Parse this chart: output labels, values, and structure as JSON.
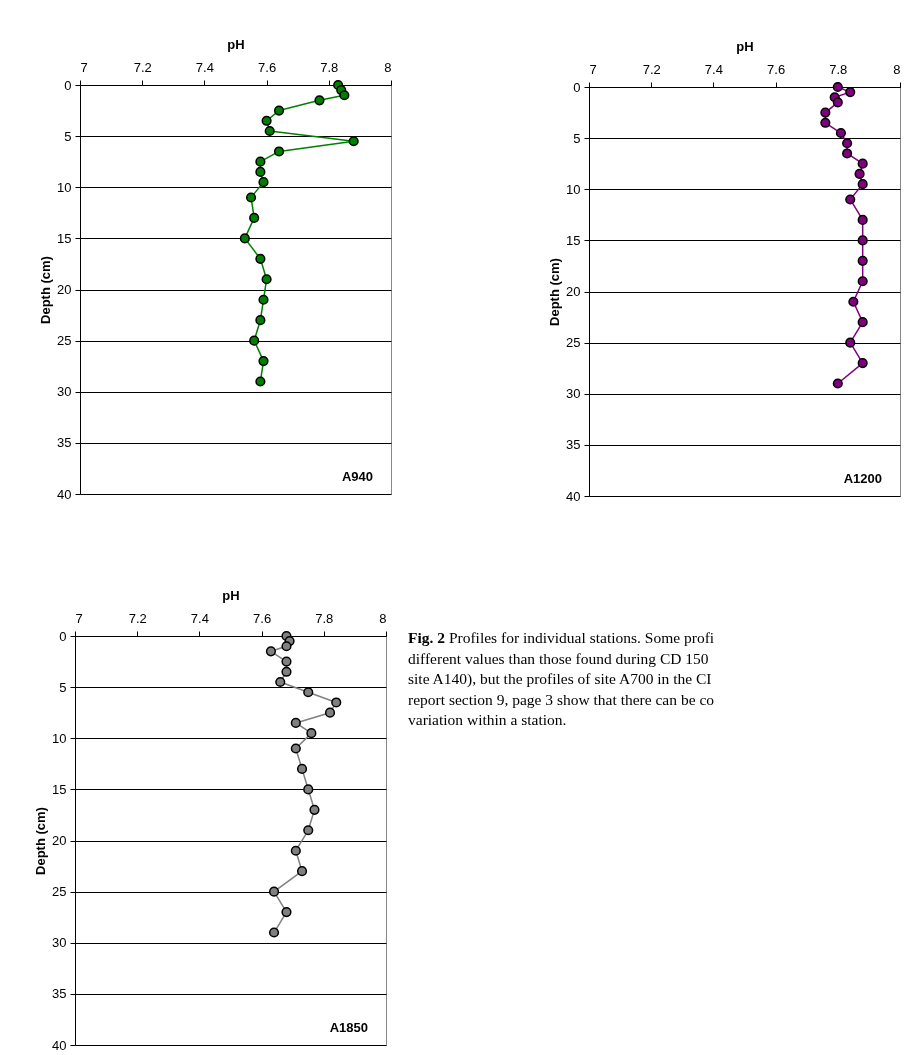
{
  "chart_data": [
    {
      "type": "line",
      "xlabel": "pH",
      "ylabel": "Depth (cm)",
      "xlim": [
        7,
        8
      ],
      "xticks": [
        7,
        7.2,
        7.4,
        7.6,
        7.8,
        8
      ],
      "ylim": [
        40,
        0
      ],
      "yticks": [
        0,
        5,
        10,
        15,
        20,
        25,
        30,
        35,
        40
      ],
      "grid": "y",
      "marker": "circle",
      "line_style": "solid",
      "annotations": [
        "A940"
      ],
      "series": [
        {
          "color": "#008000",
          "x": [
            7.83,
            7.84,
            7.85,
            7.77,
            7.64,
            7.6,
            7.61,
            7.88,
            7.64,
            7.58,
            7.58,
            7.59,
            7.55,
            7.56,
            7.53,
            7.58,
            7.6,
            7.59,
            7.58,
            7.56,
            7.59,
            7.58
          ],
          "values": [
            0,
            0.5,
            1,
            1.5,
            2.5,
            3.5,
            4.5,
            5.5,
            6.5,
            7.5,
            8.5,
            9.5,
            11,
            13,
            15,
            17,
            19,
            21,
            23,
            25,
            27,
            29
          ]
        }
      ]
    },
    {
      "type": "line",
      "xlabel": "pH",
      "ylabel": "Depth (cm)",
      "xlim": [
        7,
        8
      ],
      "xticks": [
        7,
        7.2,
        7.4,
        7.6,
        7.8,
        8
      ],
      "ylim": [
        40,
        0
      ],
      "yticks": [
        0,
        5,
        10,
        15,
        20,
        25,
        30,
        35,
        40
      ],
      "grid": "y",
      "marker": "circle",
      "line_style": "solid",
      "annotations": [
        "A1200"
      ],
      "series": [
        {
          "color": "#800080",
          "x": [
            7.8,
            7.84,
            7.79,
            7.8,
            7.76,
            7.76,
            7.81,
            7.83,
            7.83,
            7.88,
            7.87,
            7.88,
            7.84,
            7.88,
            7.88,
            7.88,
            7.88,
            7.85,
            7.88,
            7.84,
            7.88,
            7.8
          ],
          "values": [
            0,
            0.5,
            1,
            1.5,
            2.5,
            3.5,
            4.5,
            5.5,
            6.5,
            7.5,
            8.5,
            9.5,
            11,
            13,
            15,
            17,
            19,
            21,
            23,
            25,
            27,
            29
          ]
        }
      ]
    },
    {
      "type": "line",
      "xlabel": "pH",
      "ylabel": "Depth (cm)",
      "xlim": [
        7,
        8
      ],
      "xticks": [
        7,
        7.2,
        7.4,
        7.6,
        7.8,
        8
      ],
      "ylim": [
        40,
        0
      ],
      "yticks": [
        0,
        5,
        10,
        15,
        20,
        25,
        30,
        35,
        40
      ],
      "grid": "y",
      "marker": "circle",
      "line_style": "solid",
      "annotations": [
        "A1850",
        "Fig. 2",
        "Profiles for individual stations. Some profi",
        "different values than those found during CD 150",
        "site A140), but the profiles of site A700 in the CI",
        "report section 9, page 3 show that there can be co",
        "variation within a station."
      ],
      "series": [
        {
          "color": "#808080",
          "x": [
            7.68,
            7.69,
            7.68,
            7.63,
            7.68,
            7.68,
            7.66,
            7.75,
            7.84,
            7.82,
            7.71,
            7.76,
            7.71,
            7.73,
            7.75,
            7.77,
            7.75,
            7.71,
            7.73,
            7.64,
            7.68,
            7.64
          ],
          "values": [
            0,
            0.5,
            1,
            1.5,
            2.5,
            3.5,
            4.5,
            5.5,
            6.5,
            7.5,
            8.5,
            9.5,
            11,
            13,
            15,
            17,
            19,
            21,
            23,
            25,
            27,
            29
          ]
        }
      ]
    }
  ]
}
